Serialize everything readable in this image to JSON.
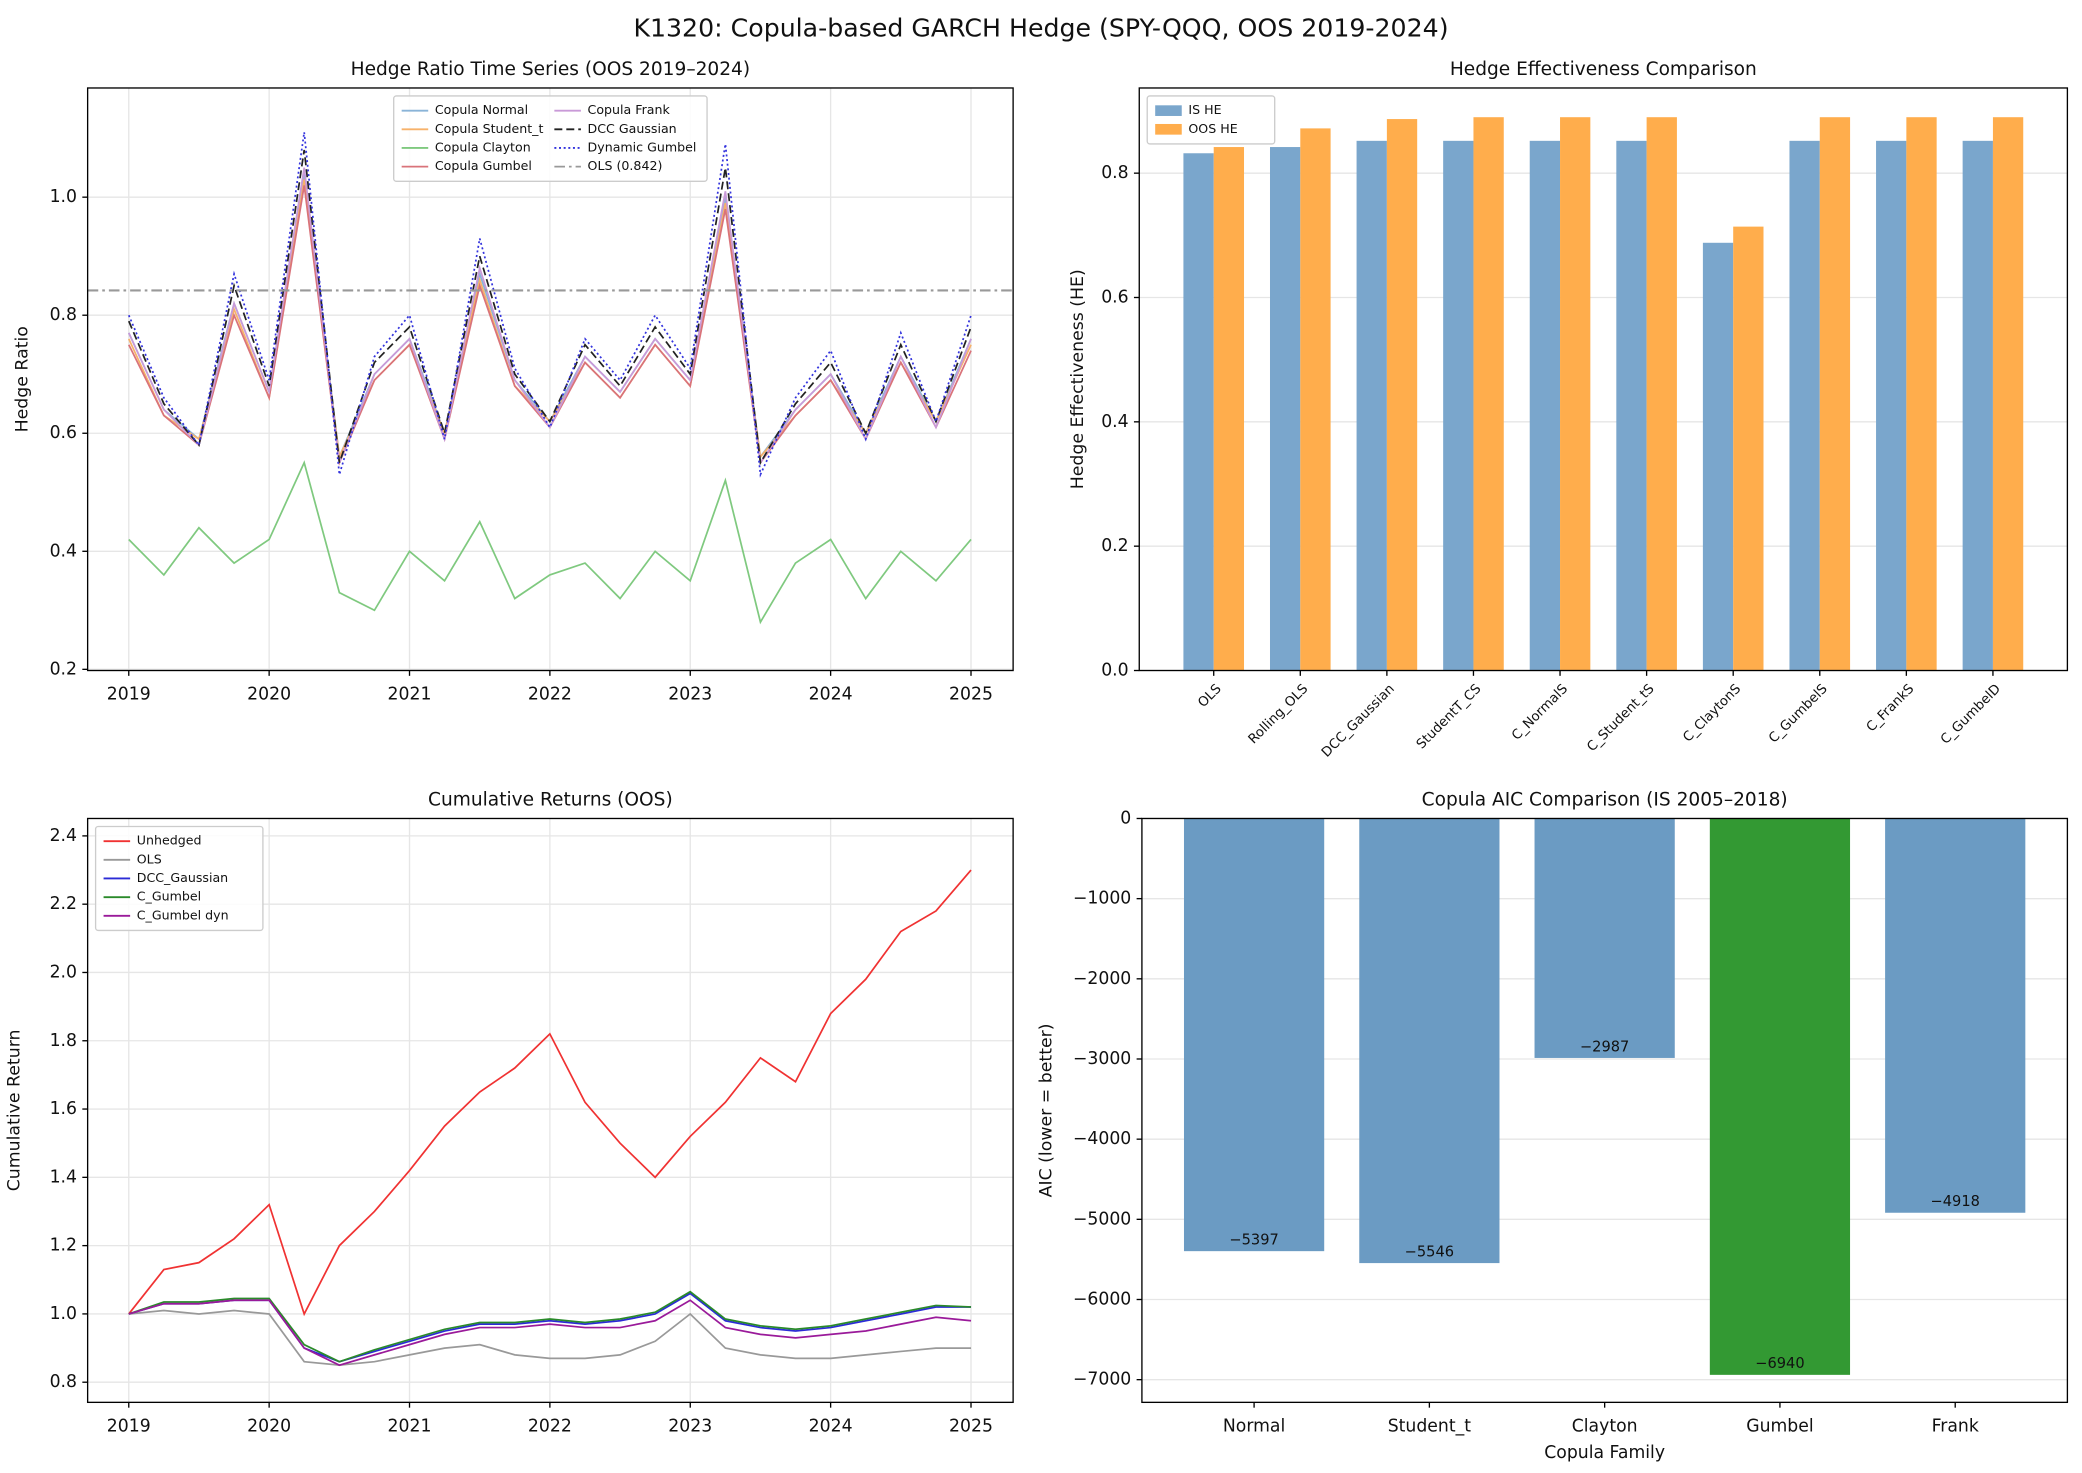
{
  "title": "K1320: Copula-based GARCH Hedge (SPY-QQQ, OOS 2019-2024)",
  "chart_data": [
    {
      "type": "line",
      "title": "Hedge Ratio Time Series (OOS 2019–2024)",
      "ylabel": "Hedge Ratio",
      "x": [
        2019,
        2019.25,
        2019.5,
        2019.75,
        2020,
        2020.25,
        2020.5,
        2020.75,
        2021,
        2021.25,
        2021.5,
        2021.75,
        2022,
        2022.25,
        2022.5,
        2022.75,
        2023,
        2023.25,
        2023.5,
        2023.75,
        2024,
        2024.25,
        2024.5,
        2024.75,
        2025
      ],
      "xlim": [
        2018.707,
        2025.3
      ],
      "xticks": [
        2019,
        2020,
        2021,
        2022,
        2023,
        2024,
        2025
      ],
      "ylim": [
        0.198,
        1.185
      ],
      "yticks": [
        0.2,
        0.4,
        0.6,
        0.8,
        {
          "value": 1.0,
          "label": "1.0"
        }
      ],
      "grid": true,
      "legend": "upper center",
      "legend_ncol": 2,
      "series": [
        {
          "name": "Copula Normal",
          "color": "#8ab4d8",
          "linestyle": "solid",
          "values": [
            0.77,
            0.64,
            0.59,
            0.82,
            0.67,
            1.04,
            0.56,
            0.7,
            0.76,
            0.6,
            0.87,
            0.69,
            0.62,
            0.73,
            0.67,
            0.76,
            0.69,
            1.0,
            0.56,
            0.64,
            0.7,
            0.6,
            0.73,
            0.62,
            0.76
          ]
        },
        {
          "name": "Copula Student_t",
          "color": "#f7b26b",
          "linestyle": "solid",
          "values": [
            0.76,
            0.63,
            0.59,
            0.81,
            0.66,
            1.03,
            0.56,
            0.69,
            0.75,
            0.6,
            0.86,
            0.68,
            0.62,
            0.72,
            0.66,
            0.75,
            0.68,
            0.99,
            0.56,
            0.63,
            0.69,
            0.6,
            0.72,
            0.62,
            0.75
          ]
        },
        {
          "name": "Copula Clayton",
          "color": "#7fc97f",
          "linestyle": "solid",
          "values": [
            0.42,
            0.36,
            0.44,
            0.38,
            0.42,
            0.55,
            0.33,
            0.3,
            0.4,
            0.35,
            0.45,
            0.32,
            0.36,
            0.38,
            0.32,
            0.4,
            0.35,
            0.52,
            0.28,
            0.38,
            0.42,
            0.32,
            0.4,
            0.35,
            0.42
          ]
        },
        {
          "name": "Copula Gumbel",
          "color": "#d9737a",
          "linestyle": "solid",
          "values": [
            0.75,
            0.63,
            0.58,
            0.8,
            0.66,
            1.02,
            0.55,
            0.69,
            0.75,
            0.59,
            0.85,
            0.68,
            0.61,
            0.72,
            0.66,
            0.75,
            0.68,
            0.98,
            0.55,
            0.63,
            0.69,
            0.59,
            0.72,
            0.61,
            0.74
          ]
        },
        {
          "name": "Copula Frank",
          "color": "#c99ad8",
          "linestyle": "solid",
          "values": [
            0.77,
            0.64,
            0.58,
            0.82,
            0.67,
            1.05,
            0.55,
            0.7,
            0.76,
            0.59,
            0.88,
            0.69,
            0.61,
            0.73,
            0.67,
            0.76,
            0.69,
            1.01,
            0.55,
            0.64,
            0.7,
            0.59,
            0.73,
            0.61,
            0.76
          ]
        },
        {
          "name": "DCC Gaussian",
          "color": "#222222",
          "linestyle": "dashed",
          "values": [
            0.79,
            0.65,
            0.58,
            0.85,
            0.68,
            1.08,
            0.55,
            0.72,
            0.78,
            0.6,
            0.9,
            0.7,
            0.62,
            0.75,
            0.68,
            0.78,
            0.7,
            1.05,
            0.55,
            0.65,
            0.72,
            0.6,
            0.75,
            0.62,
            0.78
          ]
        },
        {
          "name": "Dynamic Gumbel",
          "color": "#3333dd",
          "linestyle": "dotted",
          "values": [
            0.8,
            0.66,
            0.58,
            0.87,
            0.69,
            1.11,
            0.53,
            0.73,
            0.8,
            0.59,
            0.93,
            0.71,
            0.61,
            0.76,
            0.69,
            0.8,
            0.71,
            1.09,
            0.53,
            0.66,
            0.74,
            0.59,
            0.77,
            0.62,
            0.8
          ]
        }
      ],
      "hline": {
        "name": "OLS (0.842)",
        "value": 0.842,
        "color": "#999999",
        "linestyle": "dashdot"
      }
    },
    {
      "type": "bar",
      "title": "Hedge Effectiveness Comparison",
      "ylabel": "Hedge Effectiveness (HE)",
      "categories": [
        "OLS",
        "Rolling_OLS",
        "DCC_Gaussian",
        "StudentT_CS",
        "C_NormalS",
        "C_Student_tS",
        "C_ClaytonS",
        "C_GumbelS",
        "C_FrankS",
        "C_GumbelD"
      ],
      "xtick_rotation": 45,
      "ylim": [
        0,
        0.937
      ],
      "yticks": [
        {
          "value": 0,
          "label": "0.0"
        },
        0.2,
        0.4,
        0.6,
        0.8
      ],
      "grid": true,
      "legend": "upper left",
      "legend_ncol": 1,
      "series": [
        {
          "name": "IS HE",
          "color": "#7aa6cc",
          "values": [
            0.832,
            0.842,
            0.852,
            0.852,
            0.852,
            0.852,
            0.688,
            0.852,
            0.852,
            0.852
          ]
        },
        {
          "name": "OOS HE",
          "color": "#ffad4c",
          "values": [
            0.842,
            0.872,
            0.887,
            0.89,
            0.89,
            0.89,
            0.714,
            0.89,
            0.89,
            0.89
          ]
        }
      ]
    },
    {
      "type": "line",
      "title": "Cumulative Returns (OOS)",
      "ylabel": "Cumulative Return",
      "x": [
        2019,
        2019.25,
        2019.5,
        2019.75,
        2020,
        2020.25,
        2020.5,
        2020.75,
        2021,
        2021.25,
        2021.5,
        2021.75,
        2022,
        2022.25,
        2022.5,
        2022.75,
        2023,
        2023.25,
        2023.5,
        2023.75,
        2024,
        2024.25,
        2024.5,
        2024.75,
        2025
      ],
      "xlim": [
        2018.707,
        2025.3
      ],
      "xticks": [
        2019,
        2020,
        2021,
        2022,
        2023,
        2024,
        2025
      ],
      "ylim": [
        0.741,
        2.451
      ],
      "yticks": [
        0.8,
        {
          "value": 1.0,
          "label": "1.0"
        },
        1.2,
        1.4,
        1.6,
        1.8,
        {
          "value": 2.0,
          "label": "2.0"
        },
        2.2,
        2.4
      ],
      "grid": true,
      "legend": "upper left",
      "legend_ncol": 1,
      "series": [
        {
          "name": "Unhedged",
          "color": "#f03232",
          "linestyle": "solid",
          "values": [
            1.0,
            1.13,
            1.15,
            1.22,
            1.32,
            1.0,
            1.2,
            1.3,
            1.42,
            1.55,
            1.65,
            1.72,
            1.82,
            1.62,
            1.5,
            1.4,
            1.52,
            1.62,
            1.75,
            1.68,
            1.88,
            1.98,
            2.12,
            2.18,
            2.3
          ]
        },
        {
          "name": "OLS",
          "color": "#999999",
          "linestyle": "solid",
          "values": [
            1.0,
            1.01,
            1.0,
            1.01,
            1.0,
            0.86,
            0.85,
            0.86,
            0.88,
            0.9,
            0.91,
            0.88,
            0.87,
            0.87,
            0.88,
            0.92,
            1.0,
            0.9,
            0.88,
            0.87,
            0.87,
            0.88,
            0.89,
            0.9,
            0.9
          ]
        },
        {
          "name": "DCC_Gaussian",
          "color": "#2b2bd6",
          "linestyle": "solid",
          "values": [
            1.0,
            1.03,
            1.03,
            1.04,
            1.04,
            0.9,
            0.86,
            0.89,
            0.92,
            0.95,
            0.97,
            0.97,
            0.98,
            0.97,
            0.98,
            1.0,
            1.06,
            0.98,
            0.96,
            0.95,
            0.96,
            0.98,
            1.0,
            1.02,
            1.02
          ]
        },
        {
          "name": "C_Gumbel",
          "color": "#2a8a2a",
          "linestyle": "solid",
          "values": [
            1.0,
            1.035,
            1.035,
            1.045,
            1.045,
            0.91,
            0.86,
            0.895,
            0.925,
            0.955,
            0.975,
            0.975,
            0.985,
            0.975,
            0.985,
            1.005,
            1.065,
            0.985,
            0.965,
            0.955,
            0.965,
            0.985,
            1.005,
            1.025,
            1.02
          ]
        },
        {
          "name": "C_Gumbel dyn",
          "color": "#9a1a9a",
          "linestyle": "solid",
          "values": [
            1.0,
            1.03,
            1.03,
            1.04,
            1.04,
            0.9,
            0.85,
            0.88,
            0.91,
            0.94,
            0.96,
            0.96,
            0.97,
            0.96,
            0.96,
            0.98,
            1.04,
            0.96,
            0.94,
            0.93,
            0.94,
            0.95,
            0.97,
            0.99,
            0.98
          ]
        }
      ]
    },
    {
      "type": "bar",
      "title": "Copula AIC Comparison (IS 2005–2018)",
      "xlabel": "Copula Family",
      "ylabel": "AIC (lower = better)",
      "categories": [
        "Normal",
        "Student_t",
        "Clayton",
        "Gumbel",
        "Frank"
      ],
      "values": [
        -5397,
        -5546,
        -2987,
        -6940,
        -4918
      ],
      "value_labels": [
        "−5397",
        "−5546",
        "−2987",
        "−6940",
        "−4918"
      ],
      "colors": [
        "#6b9bc3",
        "#6b9bc3",
        "#6b9bc3",
        "#339933",
        "#6b9bc3"
      ],
      "ylim": [
        -7283,
        0
      ],
      "yticks": [
        0,
        {
          "value": -1000,
          "label": "−1000"
        },
        {
          "value": -2000,
          "label": "−2000"
        },
        {
          "value": -3000,
          "label": "−3000"
        },
        {
          "value": -4000,
          "label": "−4000"
        },
        {
          "value": -5000,
          "label": "−5000"
        },
        {
          "value": -6000,
          "label": "−6000"
        },
        {
          "value": -7000,
          "label": "−7000"
        }
      ],
      "grid": true
    }
  ]
}
